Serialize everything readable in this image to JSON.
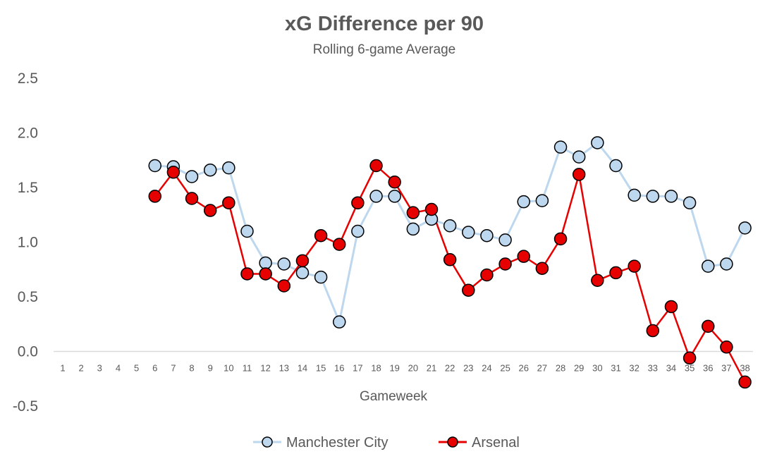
{
  "chart_data": {
    "type": "line",
    "title": "xG Difference per 90",
    "subtitle": "Rolling 6-game Average",
    "xlabel": "Gameweek",
    "ylabel": "",
    "categories": [
      "1",
      "2",
      "3",
      "4",
      "5",
      "6",
      "7",
      "8",
      "9",
      "10",
      "11",
      "12",
      "13",
      "14",
      "15",
      "16",
      "17",
      "18",
      "19",
      "20",
      "21",
      "22",
      "23",
      "24",
      "25",
      "26",
      "27",
      "28",
      "29",
      "30",
      "31",
      "32",
      "33",
      "34",
      "35",
      "36",
      "37",
      "38"
    ],
    "y_ticks": [
      "2.5",
      "2.0",
      "1.5",
      "1.0",
      "0.5",
      "0.0",
      "-0.5"
    ],
    "ylim": [
      -0.5,
      2.5
    ],
    "grid": false,
    "legend_position": "bottom",
    "series": [
      {
        "name": "Manchester City",
        "line_color": "#bdd7ee",
        "marker_fill": "#bdd7ee",
        "marker_edge": "#000000",
        "values": [
          null,
          null,
          null,
          null,
          null,
          1.7,
          1.69,
          1.6,
          1.66,
          1.68,
          1.1,
          0.81,
          0.8,
          0.72,
          0.68,
          0.27,
          1.1,
          1.42,
          1.42,
          1.12,
          1.21,
          1.15,
          1.09,
          1.06,
          1.02,
          1.37,
          1.38,
          1.87,
          1.78,
          1.91,
          1.7,
          1.43,
          1.42,
          1.42,
          1.36,
          0.78,
          0.8,
          1.13
        ]
      },
      {
        "name": "Arsenal",
        "line_color": "#e60000",
        "marker_fill": "#e60000",
        "marker_edge": "#000000",
        "values": [
          null,
          null,
          null,
          null,
          null,
          1.42,
          1.64,
          1.4,
          1.29,
          1.36,
          0.71,
          0.71,
          0.6,
          0.83,
          1.06,
          0.98,
          1.36,
          1.7,
          1.55,
          1.27,
          1.3,
          0.84,
          0.56,
          0.7,
          0.8,
          0.87,
          0.76,
          1.03,
          1.62,
          0.65,
          0.72,
          0.78,
          0.19,
          0.41,
          -0.06,
          0.23,
          0.04,
          -0.28
        ]
      }
    ]
  }
}
